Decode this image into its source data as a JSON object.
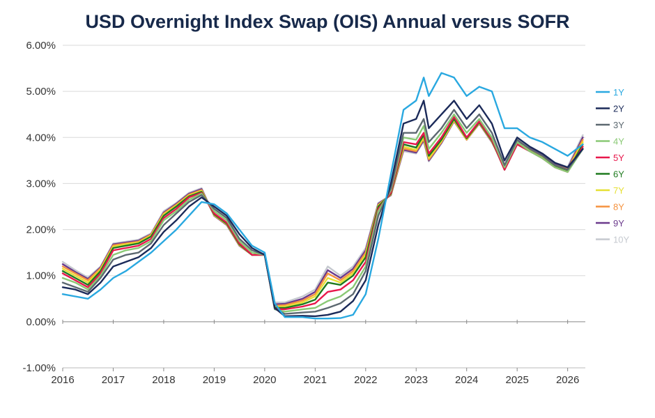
{
  "chart_data": {
    "type": "line",
    "title": "USD Overnight Index Swap (OIS) Annual versus SOFR",
    "xlabel": "",
    "ylabel": "",
    "ylim": [
      -1.0,
      6.0
    ],
    "xlim": [
      2016.0,
      2026.35
    ],
    "y_ticks": [
      "-1.00%",
      "0.00%",
      "1.00%",
      "2.00%",
      "3.00%",
      "4.00%",
      "5.00%",
      "6.00%"
    ],
    "x_ticks": [
      "2016",
      "2017",
      "2018",
      "2019",
      "2020",
      "2021",
      "2022",
      "2023",
      "2024",
      "2025",
      "2026"
    ],
    "grid": "horizontal",
    "legend_position": "right",
    "x": [
      2016.0,
      2016.25,
      2016.5,
      2016.75,
      2017.0,
      2017.25,
      2017.5,
      2017.75,
      2018.0,
      2018.25,
      2018.5,
      2018.75,
      2019.0,
      2019.25,
      2019.5,
      2019.75,
      2020.0,
      2020.2,
      2020.4,
      2020.75,
      2021.0,
      2021.25,
      2021.5,
      2021.75,
      2022.0,
      2022.25,
      2022.5,
      2022.75,
      2023.0,
      2023.15,
      2023.25,
      2023.5,
      2023.75,
      2024.0,
      2024.25,
      2024.5,
      2024.75,
      2025.0,
      2025.25,
      2025.5,
      2025.75,
      2026.0,
      2026.3
    ],
    "series": [
      {
        "name": "1Y",
        "color": "#29a8e0",
        "values": [
          0.6,
          0.55,
          0.5,
          0.7,
          0.95,
          1.1,
          1.3,
          1.5,
          1.75,
          2.0,
          2.3,
          2.6,
          2.55,
          2.35,
          2.0,
          1.65,
          1.5,
          0.4,
          0.1,
          0.1,
          0.07,
          0.07,
          0.08,
          0.15,
          0.6,
          1.8,
          3.2,
          4.6,
          4.8,
          5.3,
          4.9,
          5.4,
          5.3,
          4.9,
          5.1,
          5.0,
          4.2,
          4.2,
          4.0,
          3.9,
          3.75,
          3.6,
          3.85
        ]
      },
      {
        "name": "2Y",
        "color": "#1b2a59",
        "values": [
          0.75,
          0.7,
          0.6,
          0.85,
          1.2,
          1.3,
          1.4,
          1.6,
          1.95,
          2.2,
          2.5,
          2.7,
          2.5,
          2.3,
          1.9,
          1.6,
          1.45,
          0.3,
          0.12,
          0.13,
          0.12,
          0.15,
          0.22,
          0.45,
          0.9,
          2.1,
          3.0,
          4.3,
          4.4,
          4.8,
          4.2,
          4.5,
          4.8,
          4.4,
          4.7,
          4.3,
          3.5,
          4.0,
          3.8,
          3.65,
          3.45,
          3.35,
          3.75
        ]
      },
      {
        "name": "3Y",
        "color": "#5c6870",
        "values": [
          0.85,
          0.75,
          0.65,
          0.95,
          1.35,
          1.45,
          1.5,
          1.7,
          2.1,
          2.35,
          2.6,
          2.75,
          2.45,
          2.25,
          1.8,
          1.55,
          1.45,
          0.28,
          0.17,
          0.2,
          0.22,
          0.3,
          0.4,
          0.6,
          1.1,
          2.3,
          2.9,
          4.1,
          4.1,
          4.4,
          3.9,
          4.2,
          4.6,
          4.2,
          4.5,
          4.1,
          3.4,
          3.95,
          3.75,
          3.6,
          3.4,
          3.3,
          3.75
        ]
      },
      {
        "name": "4Y",
        "color": "#8ac975",
        "values": [
          0.95,
          0.85,
          0.7,
          1.0,
          1.45,
          1.55,
          1.6,
          1.75,
          2.2,
          2.4,
          2.65,
          2.78,
          2.4,
          2.2,
          1.75,
          1.5,
          1.45,
          0.27,
          0.22,
          0.27,
          0.3,
          0.45,
          0.55,
          0.75,
          1.2,
          2.4,
          2.85,
          4.0,
          3.95,
          4.25,
          3.75,
          4.1,
          4.5,
          4.1,
          4.4,
          4.0,
          3.35,
          3.9,
          3.7,
          3.55,
          3.35,
          3.25,
          3.75
        ]
      },
      {
        "name": "5Y",
        "color": "#e8174b",
        "values": [
          1.05,
          0.9,
          0.75,
          1.05,
          1.55,
          1.6,
          1.65,
          1.8,
          2.25,
          2.45,
          2.7,
          2.8,
          2.35,
          2.15,
          1.7,
          1.45,
          1.45,
          0.28,
          0.27,
          0.33,
          0.4,
          0.65,
          0.7,
          0.9,
          1.3,
          2.45,
          2.8,
          3.9,
          3.85,
          4.1,
          3.65,
          4.0,
          4.45,
          4.0,
          4.35,
          3.95,
          3.3,
          3.85,
          3.7,
          3.55,
          3.35,
          3.25,
          3.8
        ]
      },
      {
        "name": "6Y",
        "color": "#1e7a1e",
        "values": [
          1.1,
          0.95,
          0.8,
          1.1,
          1.6,
          1.65,
          1.7,
          1.85,
          2.3,
          2.5,
          2.72,
          2.82,
          2.33,
          2.13,
          1.68,
          1.45,
          1.45,
          0.3,
          0.3,
          0.38,
          0.48,
          0.85,
          0.8,
          1.0,
          1.4,
          2.5,
          2.78,
          3.85,
          3.78,
          4.05,
          3.6,
          3.95,
          4.4,
          3.98,
          4.33,
          3.93,
          3.3,
          3.85,
          3.7,
          3.55,
          3.36,
          3.26,
          3.85
        ]
      },
      {
        "name": "7Y",
        "color": "#e6e033",
        "values": [
          1.15,
          1.0,
          0.85,
          1.13,
          1.63,
          1.68,
          1.72,
          1.87,
          2.33,
          2.52,
          2.74,
          2.84,
          2.32,
          2.12,
          1.67,
          1.45,
          1.45,
          0.32,
          0.33,
          0.42,
          0.55,
          0.95,
          0.85,
          1.05,
          1.45,
          2.52,
          2.77,
          3.8,
          3.73,
          4.0,
          3.55,
          3.92,
          4.38,
          3.96,
          4.32,
          3.92,
          3.32,
          3.86,
          3.72,
          3.57,
          3.38,
          3.28,
          3.9
        ]
      },
      {
        "name": "8Y",
        "color": "#f5923e",
        "values": [
          1.2,
          1.05,
          0.9,
          1.16,
          1.66,
          1.7,
          1.74,
          1.89,
          2.35,
          2.54,
          2.76,
          2.86,
          2.31,
          2.11,
          1.66,
          1.45,
          1.46,
          0.35,
          0.36,
          0.46,
          0.6,
          1.05,
          0.9,
          1.1,
          1.5,
          2.54,
          2.76,
          3.76,
          3.7,
          3.97,
          3.52,
          3.9,
          4.36,
          3.95,
          4.31,
          3.91,
          3.34,
          3.88,
          3.74,
          3.59,
          3.4,
          3.31,
          3.95
        ]
      },
      {
        "name": "9Y",
        "color": "#6b3a8c",
        "values": [
          1.25,
          1.08,
          0.93,
          1.18,
          1.68,
          1.72,
          1.76,
          1.9,
          2.37,
          2.56,
          2.78,
          2.88,
          2.3,
          2.1,
          1.65,
          1.45,
          1.47,
          0.38,
          0.39,
          0.5,
          0.65,
          1.12,
          0.95,
          1.15,
          1.55,
          2.56,
          2.75,
          3.73,
          3.67,
          3.94,
          3.5,
          3.88,
          4.35,
          3.95,
          4.3,
          3.9,
          3.36,
          3.9,
          3.76,
          3.61,
          3.42,
          3.33,
          4.0
        ]
      },
      {
        "name": "10Y",
        "color": "#c5c9cf",
        "values": [
          1.3,
          1.12,
          0.96,
          1.2,
          1.7,
          1.74,
          1.78,
          1.92,
          2.4,
          2.58,
          2.8,
          2.9,
          2.3,
          2.1,
          1.65,
          1.45,
          1.48,
          0.42,
          0.42,
          0.55,
          0.7,
          1.2,
          1.0,
          1.2,
          1.6,
          2.58,
          2.74,
          3.7,
          3.65,
          3.92,
          3.48,
          3.87,
          4.35,
          3.95,
          4.3,
          3.9,
          3.38,
          3.92,
          3.78,
          3.63,
          3.45,
          3.36,
          4.05
        ]
      }
    ]
  }
}
